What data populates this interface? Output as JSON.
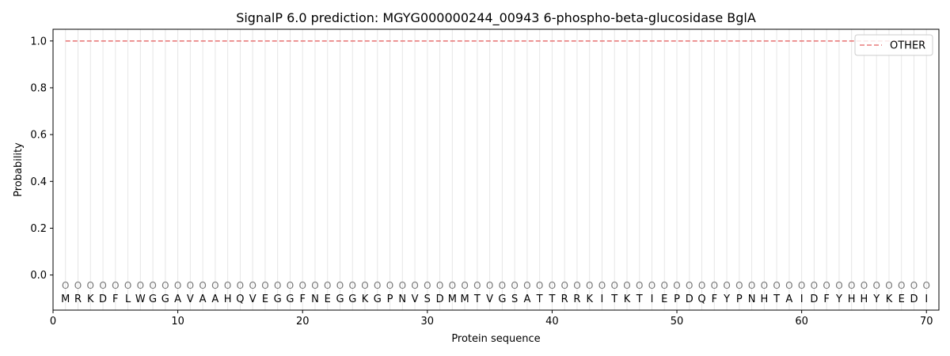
{
  "chart_data": {
    "type": "line",
    "title": "SignalP 6.0 prediction: MGYG000000244_00943 6-phospho-beta-glucosidase BglA",
    "xlabel": "Protein sequence",
    "ylabel": "Probability",
    "xlim": [
      0,
      71
    ],
    "ylim": [
      -0.15,
      1.05
    ],
    "xticks": [
      0,
      10,
      20,
      30,
      40,
      50,
      60,
      70
    ],
    "yticks": [
      "0.0",
      "0.2",
      "0.4",
      "0.6",
      "0.8",
      "1.0"
    ],
    "sequence": [
      "M",
      "R",
      "K",
      "D",
      "F",
      "L",
      "W",
      "G",
      "G",
      "A",
      "V",
      "A",
      "A",
      "H",
      "Q",
      "V",
      "E",
      "G",
      "G",
      "F",
      "N",
      "E",
      "G",
      "G",
      "K",
      "G",
      "P",
      "N",
      "V",
      "S",
      "D",
      "M",
      "M",
      "T",
      "V",
      "G",
      "S",
      "A",
      "T",
      "T",
      "R",
      "R",
      "K",
      "I",
      "T",
      "K",
      "T",
      "I",
      "E",
      "P",
      "D",
      "Q",
      "F",
      "Y",
      "P",
      "N",
      "H",
      "T",
      "A",
      "I",
      "D",
      "F",
      "Y",
      "H",
      "H",
      "Y",
      "K",
      "E",
      "D",
      "I"
    ],
    "position_marker": "O",
    "series": [
      {
        "name": "OTHER",
        "color": "#e87b7b",
        "style": "dashed",
        "x_start": 1,
        "x_end": 70,
        "value": 1.0
      }
    ],
    "legend": {
      "position": "top-right",
      "entries": [
        "OTHER"
      ]
    },
    "grid": "vertical lines at each residue position"
  }
}
